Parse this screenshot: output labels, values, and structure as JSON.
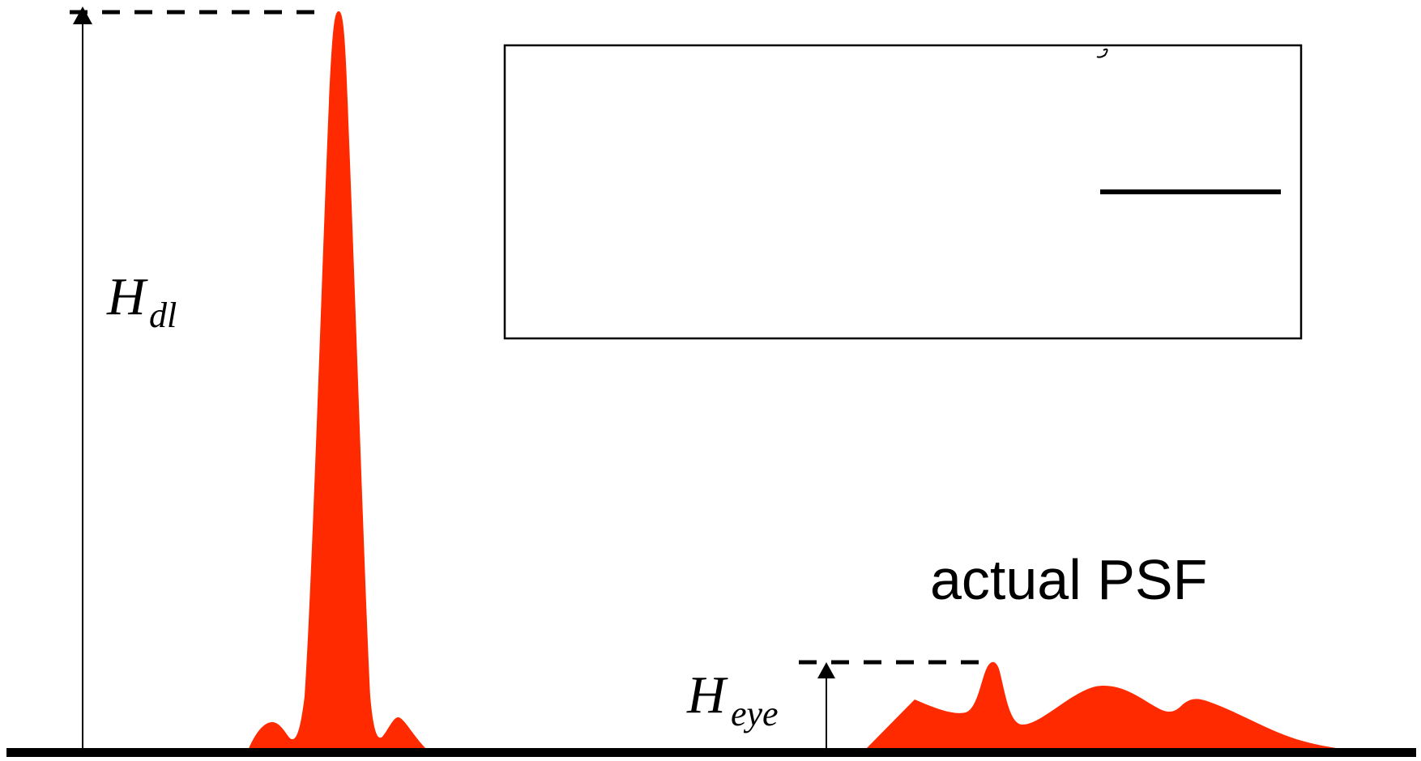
{
  "labels": {
    "diffraction_limited_height": {
      "base": "H",
      "subscript": "dl"
    },
    "eye_height": {
      "base": "H",
      "subscript": "eye"
    },
    "actual_psf": "actual PSF"
  },
  "colors": {
    "psf_fill": "#ff2a00",
    "lines": "#000000"
  }
}
